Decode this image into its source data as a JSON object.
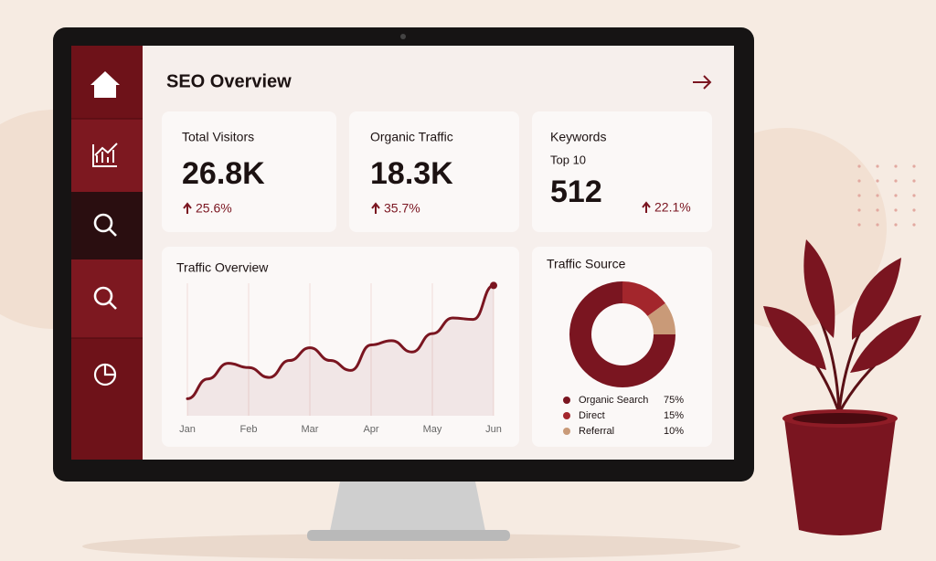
{
  "header": {
    "title": "SEO Overview"
  },
  "cards": [
    {
      "label": "Total Visitors",
      "value": "26.8K",
      "change": "25.6%"
    },
    {
      "label": "Organic Traffic",
      "value": "18.3K",
      "change": "35.7%"
    },
    {
      "label": "Keywords",
      "sublabel": "Top 10",
      "value": "512",
      "change": "22.1%"
    }
  ],
  "chart_data": [
    {
      "type": "line",
      "title": "Traffic Overview",
      "color": "#7a1520",
      "categories": [
        "Jan",
        null,
        null,
        "Feb",
        null,
        null,
        "Mar",
        null,
        null,
        "Apr",
        null,
        null,
        "May",
        null,
        null,
        "Jun"
      ],
      "values": [
        12,
        26,
        37,
        34,
        27,
        39,
        48,
        39,
        32,
        50,
        53,
        45,
        58,
        69,
        68,
        92
      ],
      "ylim": [
        0,
        100
      ],
      "grid": true
    },
    {
      "type": "pie",
      "title": "Traffic Source",
      "categories": [
        "Organic Search",
        "Direct",
        "Referral"
      ],
      "values": [
        75,
        15,
        10
      ],
      "value_labels": [
        "75%",
        "15%",
        "10%"
      ],
      "colors": [
        "#7a1520",
        "#a3262c",
        "#c99a78"
      ]
    }
  ]
}
